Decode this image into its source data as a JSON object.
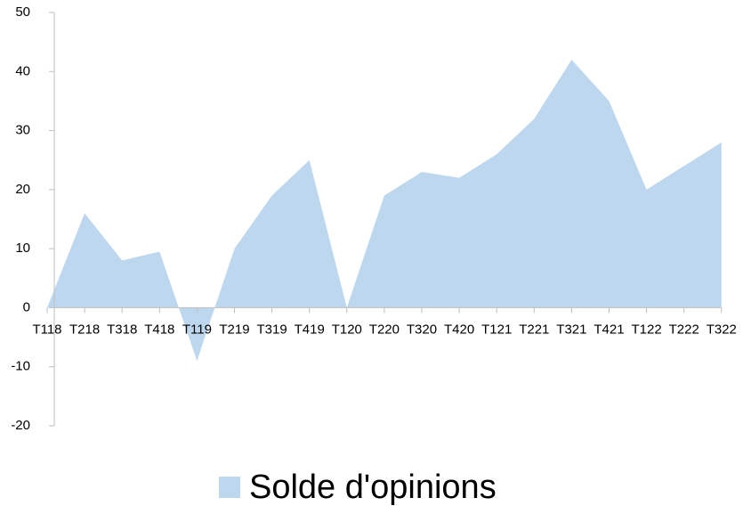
{
  "chart_data": {
    "type": "area",
    "categories": [
      "T118",
      "T218",
      "T318",
      "T418",
      "T119",
      "T219",
      "T319",
      "T419",
      "T120",
      "T220",
      "T320",
      "T420",
      "T121",
      "T221",
      "T321",
      "T421",
      "T122",
      "T222",
      "T322"
    ],
    "series": [
      {
        "name": "Solde d'opinions",
        "color": "#bdd7ee",
        "values": [
          0,
          16,
          8,
          9.5,
          -9,
          10,
          19,
          25,
          0,
          19,
          23,
          22,
          26,
          32,
          42,
          35,
          20,
          24,
          28
        ]
      }
    ],
    "ylim": [
      -20,
      50
    ],
    "yticks": [
      -20,
      -10,
      0,
      10,
      20,
      30,
      40,
      50
    ],
    "legend": "bottom"
  }
}
